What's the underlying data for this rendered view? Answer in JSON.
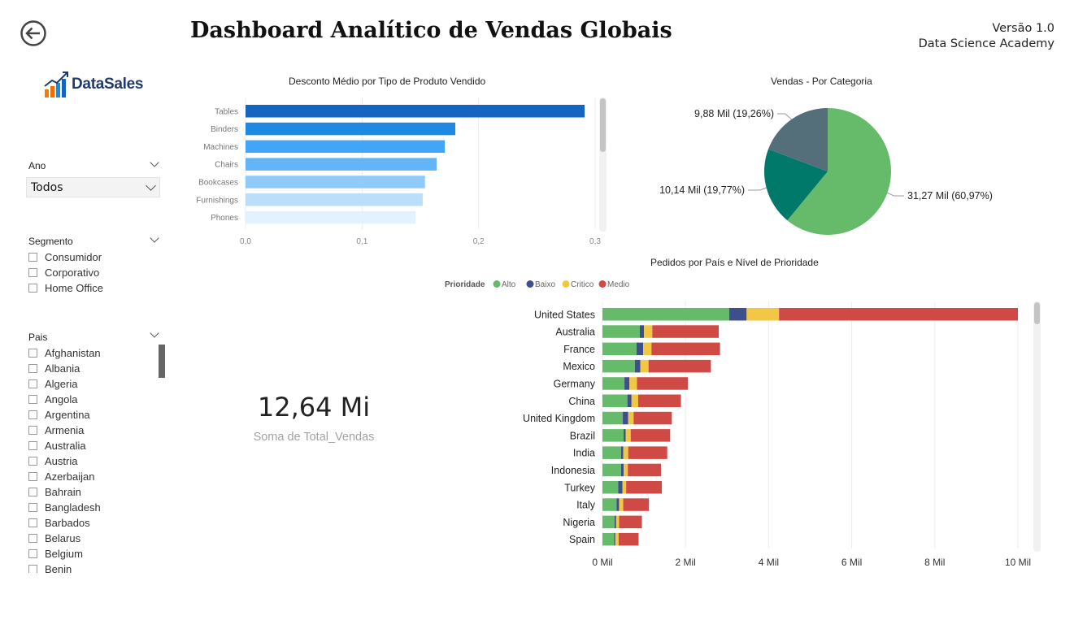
{
  "header": {
    "title": "Dashboard Analítico de Vendas Globais",
    "version": "Versão 1.0",
    "org": "Data Science Academy",
    "logo_text": "DataSales"
  },
  "filters": {
    "ano": {
      "title": "Ano",
      "selected": "Todos"
    },
    "segmento": {
      "title": "Segmento",
      "items": [
        "Consumidor",
        "Corporativo",
        "Home Office"
      ]
    },
    "pais": {
      "title": "Pais",
      "items": [
        "Afghanistan",
        "Albania",
        "Algeria",
        "Angola",
        "Argentina",
        "Armenia",
        "Australia",
        "Austria",
        "Azerbaijan",
        "Bahrain",
        "Bangladesh",
        "Barbados",
        "Belarus",
        "Belgium",
        "Benin"
      ]
    }
  },
  "card": {
    "value": "12,64 Mi",
    "label": "Soma de Total_Vendas"
  },
  "colors": {
    "bar_shades": [
      "#1565c0",
      "#1e88e5",
      "#42a5f5",
      "#64b5f6",
      "#90caf9",
      "#bbdefb",
      "#e3f2fd"
    ],
    "pie": [
      "#66bb6a",
      "#00796b",
      "#546e7a"
    ],
    "priority": [
      "#66bb6a",
      "#3f4f8c",
      "#f2c744",
      "#d04a45"
    ]
  },
  "chart_data": [
    {
      "type": "bar",
      "title": "Desconto Médio por Tipo de Produto Vendido",
      "categories": [
        "Tables",
        "Binders",
        "Machines",
        "Chairs",
        "Bookcases",
        "Furnishings",
        "Phones"
      ],
      "values": [
        0.291,
        0.18,
        0.171,
        0.164,
        0.154,
        0.152,
        0.146
      ],
      "xlim": [
        0,
        0.3
      ],
      "xticks": [
        "0,0",
        "0,1",
        "0,2",
        "0,3"
      ],
      "orientation": "horizontal"
    },
    {
      "type": "pie",
      "title": "Vendas - Por Categoria",
      "values": [
        31.27,
        10.14,
        9.88
      ],
      "labels": [
        "31,27 Mil (60,97%)",
        "10,14 Mil (19,77%)",
        "9,88 Mil (19,26%)"
      ]
    },
    {
      "type": "bar",
      "stacked": true,
      "orientation": "horizontal",
      "title": "Pedidos por País e Nível de Prioridade",
      "legend_title": "Prioridade",
      "legend_position": "top",
      "categories": [
        "United States",
        "Australia",
        "France",
        "Mexico",
        "Germany",
        "China",
        "United Kingdom",
        "Brazil",
        "India",
        "Indonesia",
        "Turkey",
        "Italy",
        "Nigeria",
        "Spain"
      ],
      "series": [
        {
          "name": "Alto",
          "values": [
            3.05,
            0.9,
            0.82,
            0.78,
            0.53,
            0.6,
            0.49,
            0.51,
            0.45,
            0.45,
            0.38,
            0.34,
            0.29,
            0.28
          ]
        },
        {
          "name": "Baixo",
          "values": [
            0.42,
            0.1,
            0.16,
            0.13,
            0.12,
            0.1,
            0.13,
            0.05,
            0.05,
            0.06,
            0.1,
            0.06,
            0.04,
            0.03
          ]
        },
        {
          "name": "Critico",
          "values": [
            0.78,
            0.2,
            0.2,
            0.2,
            0.18,
            0.16,
            0.13,
            0.12,
            0.12,
            0.1,
            0.09,
            0.1,
            0.07,
            0.08
          ]
        },
        {
          "name": "Medio",
          "values": [
            5.75,
            1.6,
            1.65,
            1.5,
            1.23,
            1.03,
            0.92,
            0.95,
            0.94,
            0.8,
            0.86,
            0.62,
            0.55,
            0.48
          ]
        }
      ],
      "xlim": [
        0,
        10
      ],
      "xticks": [
        "0 Mil",
        "2 Mil",
        "4 Mil",
        "6 Mil",
        "8 Mil",
        "10 Mil"
      ]
    }
  ]
}
